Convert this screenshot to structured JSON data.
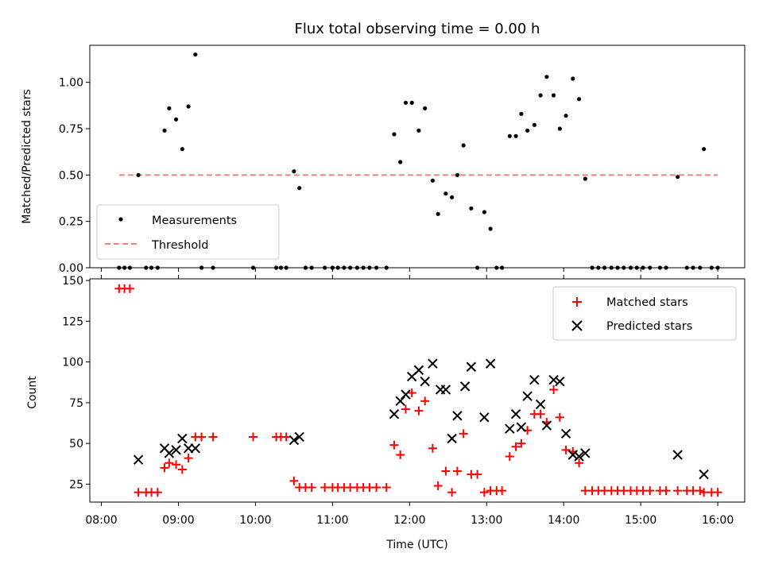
{
  "chart_data": [
    {
      "type": "scatter",
      "title": "Flux total observing time = 0.00 h",
      "xlabel": "",
      "ylabel": "Matched/Predicted stars",
      "xlim": [
        7.85,
        16.35
      ],
      "ylim": [
        0.0,
        1.2
      ],
      "yticks": [
        0.0,
        0.25,
        0.5,
        0.75,
        1.0
      ],
      "ytick_labels": [
        "0.00",
        "0.25",
        "0.50",
        "0.75",
        "1.00"
      ],
      "legend": {
        "position": "lower-left",
        "entries": [
          "Measurements",
          "Threshold"
        ]
      },
      "threshold": {
        "label": "Threshold",
        "value": 0.5,
        "x_range": [
          8.23,
          16.0
        ],
        "color": "#f08080"
      },
      "series": [
        {
          "name": "Measurements",
          "marker": "dot",
          "color": "#000000",
          "points": [
            [
              8.23,
              0
            ],
            [
              8.3,
              0
            ],
            [
              8.37,
              0
            ],
            [
              8.48,
              0.5
            ],
            [
              8.58,
              0
            ],
            [
              8.65,
              0
            ],
            [
              8.73,
              0
            ],
            [
              8.82,
              0.74
            ],
            [
              8.88,
              0.86
            ],
            [
              8.97,
              0.8
            ],
            [
              9.05,
              0.64
            ],
            [
              9.13,
              0.87
            ],
            [
              9.22,
              1.15
            ],
            [
              9.3,
              0
            ],
            [
              9.45,
              0
            ],
            [
              9.97,
              0
            ],
            [
              10.27,
              0
            ],
            [
              10.33,
              0
            ],
            [
              10.4,
              0
            ],
            [
              10.5,
              0.52
            ],
            [
              10.57,
              0.43
            ],
            [
              10.65,
              0
            ],
            [
              10.73,
              0
            ],
            [
              10.9,
              0
            ],
            [
              11.0,
              0
            ],
            [
              11.07,
              0
            ],
            [
              11.15,
              0
            ],
            [
              11.23,
              0
            ],
            [
              11.32,
              0
            ],
            [
              11.4,
              0
            ],
            [
              11.48,
              0
            ],
            [
              11.57,
              0
            ],
            [
              11.7,
              0
            ],
            [
              11.8,
              0.72
            ],
            [
              11.88,
              0.57
            ],
            [
              11.95,
              0.89
            ],
            [
              12.03,
              0.89
            ],
            [
              12.12,
              0.74
            ],
            [
              12.2,
              0.86
            ],
            [
              12.3,
              0.47
            ],
            [
              12.37,
              0.29
            ],
            [
              12.47,
              0.4
            ],
            [
              12.55,
              0.38
            ],
            [
              12.62,
              0.5
            ],
            [
              12.7,
              0.66
            ],
            [
              12.8,
              0.32
            ],
            [
              12.88,
              0
            ],
            [
              12.97,
              0.3
            ],
            [
              13.05,
              0.21
            ],
            [
              13.13,
              0
            ],
            [
              13.2,
              0
            ],
            [
              13.3,
              0.71
            ],
            [
              13.38,
              0.71
            ],
            [
              13.45,
              0.83
            ],
            [
              13.53,
              0.74
            ],
            [
              13.62,
              0.77
            ],
            [
              13.7,
              0.93
            ],
            [
              13.78,
              1.03
            ],
            [
              13.87,
              0.93
            ],
            [
              13.95,
              0.75
            ],
            [
              14.03,
              0.82
            ],
            [
              14.12,
              1.02
            ],
            [
              14.2,
              0.91
            ],
            [
              14.28,
              0.48
            ],
            [
              14.37,
              0
            ],
            [
              14.45,
              0
            ],
            [
              14.53,
              0
            ],
            [
              14.62,
              0
            ],
            [
              14.7,
              0
            ],
            [
              14.78,
              0
            ],
            [
              14.87,
              0
            ],
            [
              14.95,
              0
            ],
            [
              15.03,
              0
            ],
            [
              15.12,
              0
            ],
            [
              15.25,
              0
            ],
            [
              15.33,
              0
            ],
            [
              15.48,
              0.49
            ],
            [
              15.6,
              0
            ],
            [
              15.68,
              0
            ],
            [
              15.77,
              0
            ],
            [
              15.82,
              0.64
            ],
            [
              15.92,
              0
            ],
            [
              16.0,
              0
            ]
          ]
        }
      ]
    },
    {
      "type": "scatter",
      "title": "",
      "xlabel": "Time (UTC)",
      "ylabel": "Count",
      "xlim": [
        7.85,
        16.35
      ],
      "ylim": [
        14,
        151
      ],
      "yticks": [
        25,
        50,
        75,
        100,
        125,
        150
      ],
      "ytick_labels": [
        "25",
        "50",
        "75",
        "100",
        "125",
        "150"
      ],
      "xticks": [
        8,
        9,
        10,
        11,
        12,
        13,
        14,
        15,
        16
      ],
      "xtick_labels": [
        "08:00",
        "09:00",
        "10:00",
        "11:00",
        "12:00",
        "13:00",
        "14:00",
        "15:00",
        "16:00"
      ],
      "legend": {
        "position": "top-right",
        "entries": [
          "Matched stars",
          "Predicted stars"
        ]
      },
      "series": [
        {
          "name": "Matched stars",
          "marker": "plus",
          "color": "#ff0000",
          "points": [
            [
              8.23,
              145
            ],
            [
              8.3,
              145
            ],
            [
              8.37,
              145
            ],
            [
              8.48,
              20
            ],
            [
              8.58,
              20
            ],
            [
              8.65,
              20
            ],
            [
              8.73,
              20
            ],
            [
              8.82,
              35
            ],
            [
              8.88,
              38
            ],
            [
              8.97,
              37
            ],
            [
              9.05,
              34
            ],
            [
              9.13,
              41
            ],
            [
              9.22,
              54
            ],
            [
              9.3,
              54
            ],
            [
              9.45,
              54
            ],
            [
              9.97,
              54
            ],
            [
              10.27,
              54
            ],
            [
              10.33,
              54
            ],
            [
              10.4,
              54
            ],
            [
              10.5,
              27
            ],
            [
              10.57,
              23
            ],
            [
              10.65,
              23
            ],
            [
              10.73,
              23
            ],
            [
              10.9,
              23
            ],
            [
              11.0,
              23
            ],
            [
              11.07,
              23
            ],
            [
              11.15,
              23
            ],
            [
              11.23,
              23
            ],
            [
              11.32,
              23
            ],
            [
              11.4,
              23
            ],
            [
              11.48,
              23
            ],
            [
              11.57,
              23
            ],
            [
              11.7,
              23
            ],
            [
              11.8,
              49
            ],
            [
              11.88,
              43
            ],
            [
              11.95,
              71
            ],
            [
              12.03,
              81
            ],
            [
              12.12,
              70
            ],
            [
              12.2,
              76
            ],
            [
              12.3,
              47
            ],
            [
              12.37,
              24
            ],
            [
              12.47,
              33
            ],
            [
              12.55,
              20
            ],
            [
              12.62,
              33
            ],
            [
              12.7,
              56
            ],
            [
              12.8,
              31
            ],
            [
              12.88,
              31
            ],
            [
              12.97,
              20
            ],
            [
              13.05,
              21
            ],
            [
              13.13,
              21
            ],
            [
              13.2,
              21
            ],
            [
              13.3,
              42
            ],
            [
              13.38,
              48
            ],
            [
              13.45,
              50
            ],
            [
              13.53,
              58
            ],
            [
              13.62,
              68
            ],
            [
              13.7,
              68
            ],
            [
              13.78,
              63
            ],
            [
              13.87,
              83
            ],
            [
              13.95,
              66
            ],
            [
              14.03,
              46
            ],
            [
              14.12,
              45
            ],
            [
              14.2,
              38
            ],
            [
              14.28,
              21
            ],
            [
              14.37,
              21
            ],
            [
              14.45,
              21
            ],
            [
              14.53,
              21
            ],
            [
              14.62,
              21
            ],
            [
              14.7,
              21
            ],
            [
              14.78,
              21
            ],
            [
              14.87,
              21
            ],
            [
              14.95,
              21
            ],
            [
              15.03,
              21
            ],
            [
              15.12,
              21
            ],
            [
              15.25,
              21
            ],
            [
              15.33,
              21
            ],
            [
              15.48,
              21
            ],
            [
              15.6,
              21
            ],
            [
              15.68,
              21
            ],
            [
              15.77,
              21
            ],
            [
              15.82,
              20
            ],
            [
              15.92,
              20
            ],
            [
              16.0,
              20
            ]
          ]
        },
        {
          "name": "Predicted stars",
          "marker": "x",
          "color": "#000000",
          "points": [
            [
              8.48,
              40
            ],
            [
              8.82,
              47
            ],
            [
              8.88,
              44
            ],
            [
              8.97,
              46
            ],
            [
              9.05,
              53
            ],
            [
              9.13,
              47
            ],
            [
              9.22,
              47
            ],
            [
              10.5,
              52
            ],
            [
              10.57,
              54
            ],
            [
              11.8,
              68
            ],
            [
              11.88,
              76
            ],
            [
              11.95,
              80
            ],
            [
              12.03,
              91
            ],
            [
              12.12,
              95
            ],
            [
              12.2,
              88
            ],
            [
              12.3,
              99
            ],
            [
              12.4,
              83
            ],
            [
              12.47,
              83
            ],
            [
              12.55,
              53
            ],
            [
              12.62,
              67
            ],
            [
              12.72,
              85
            ],
            [
              12.8,
              97
            ],
            [
              12.97,
              66
            ],
            [
              13.05,
              99
            ],
            [
              13.3,
              59
            ],
            [
              13.38,
              68
            ],
            [
              13.45,
              60
            ],
            [
              13.53,
              79
            ],
            [
              13.62,
              89
            ],
            [
              13.7,
              74
            ],
            [
              13.78,
              61
            ],
            [
              13.87,
              89
            ],
            [
              13.95,
              88
            ],
            [
              14.03,
              56
            ],
            [
              14.12,
              43
            ],
            [
              14.2,
              42
            ],
            [
              14.28,
              44
            ],
            [
              15.48,
              43
            ],
            [
              15.82,
              31
            ]
          ]
        }
      ]
    }
  ]
}
